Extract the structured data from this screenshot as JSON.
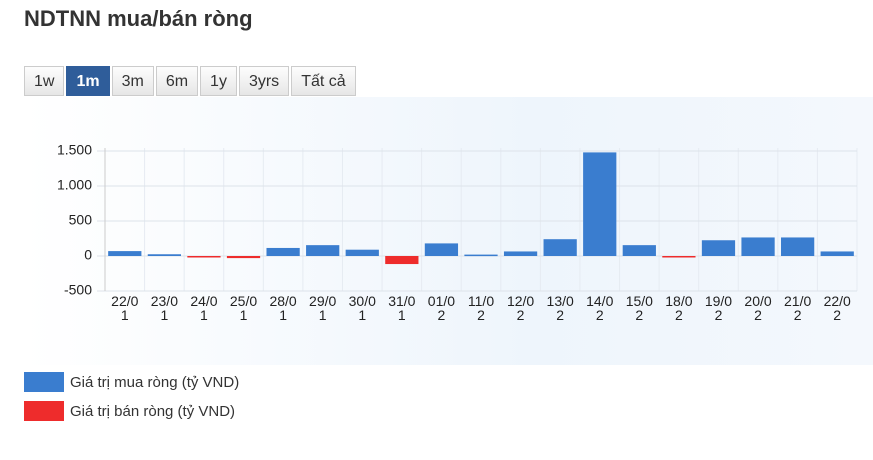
{
  "header": {
    "title": "NDTNN mua/bán ròng"
  },
  "buttons": [
    "1w",
    "1m",
    "3m",
    "6m",
    "1y",
    "3yrs",
    "Tất cả"
  ],
  "active_button": 1,
  "chart_data": {
    "type": "bar",
    "categories": [
      "22/01",
      "23/01",
      "24/01",
      "25/01",
      "28/01",
      "29/01",
      "30/01",
      "31/01",
      "01/02",
      "11/02",
      "12/02",
      "13/02",
      "14/02",
      "15/02",
      "18/02",
      "19/02",
      "20/02",
      "21/02",
      "22/02"
    ],
    "series": [
      {
        "name": "Giá trị mua ròng (tỷ VND)",
        "color": "#3a7dcf",
        "values": [
          70,
          25,
          null,
          null,
          115,
          155,
          90,
          null,
          180,
          20,
          65,
          240,
          1480,
          155,
          null,
          225,
          265,
          265,
          65
        ]
      },
      {
        "name": "Giá trị bán ròng (tỷ VND)",
        "color": "#ee2c2c",
        "values": [
          null,
          null,
          -10,
          -30,
          null,
          null,
          null,
          -115,
          null,
          null,
          null,
          null,
          null,
          null,
          -15,
          null,
          null,
          null,
          null
        ]
      }
    ],
    "ylim": [
      -500,
      1500
    ],
    "yticks": [
      -500,
      0,
      500,
      {
        "value": 1000,
        "label": "1.000"
      },
      {
        "value": 1500,
        "label": "1.500"
      }
    ],
    "grid": true
  }
}
